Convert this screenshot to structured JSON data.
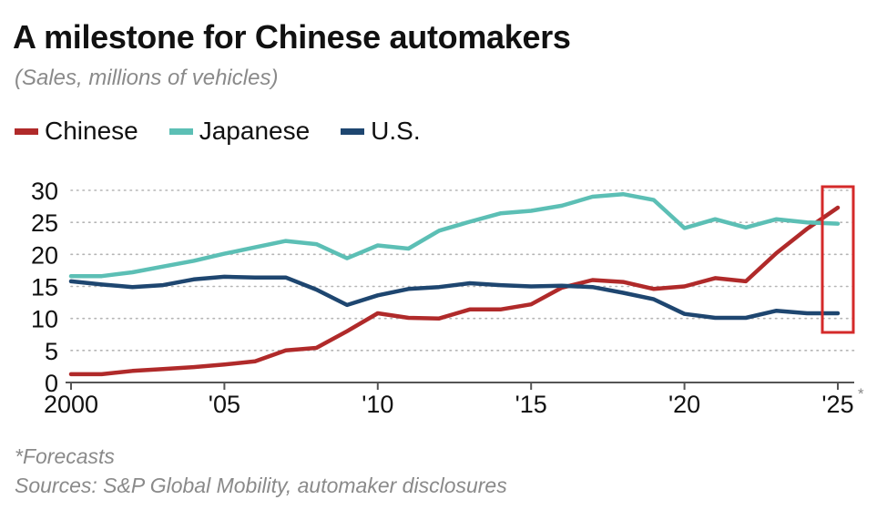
{
  "title": "A milestone for Chinese automakers",
  "subtitle": "(Sales, millions of vehicles)",
  "footnotes": {
    "forecast": "*Forecasts",
    "sources": "Sources: S&P Global Mobility, automaker disclosures"
  },
  "colors": {
    "chinese": "#b02a2a",
    "japanese": "#5cbfb5",
    "us": "#1e4670",
    "highlight": "#d42a2a",
    "grid": "#b5b5b5"
  },
  "chart_data": {
    "type": "line",
    "x": [
      2000,
      2001,
      2002,
      2003,
      2004,
      2005,
      2006,
      2007,
      2008,
      2009,
      2010,
      2011,
      2012,
      2013,
      2014,
      2015,
      2016,
      2017,
      2018,
      2019,
      2020,
      2021,
      2022,
      2023,
      2024,
      2025
    ],
    "x_tick_values": [
      2000,
      2005,
      2010,
      2015,
      2020,
      2025
    ],
    "x_tick_labels": [
      "2000",
      "'05",
      "'10",
      "'15",
      "'20",
      "'25"
    ],
    "x_tick_suffix_2025": "*",
    "y_ticks": [
      0,
      5,
      10,
      15,
      20,
      25,
      30
    ],
    "ylim": [
      0,
      30
    ],
    "xlim": [
      2000,
      2025
    ],
    "grid": "horizontal dotted",
    "legend_position": "top-left",
    "highlight_year": 2025,
    "series": [
      {
        "name": "Chinese",
        "color": "#b02a2a",
        "values": [
          1.3,
          1.3,
          1.8,
          2.1,
          2.4,
          2.8,
          3.3,
          5.0,
          5.4,
          8.0,
          10.8,
          10.1,
          10.0,
          11.4,
          11.4,
          12.2,
          14.8,
          16.0,
          15.7,
          14.6,
          15.0,
          16.3,
          15.8,
          20.2,
          24.0,
          27.3
        ]
      },
      {
        "name": "Japanese",
        "color": "#5cbfb5",
        "values": [
          16.6,
          16.6,
          17.2,
          18.1,
          19.0,
          20.1,
          21.1,
          22.1,
          21.6,
          19.4,
          21.4,
          20.9,
          23.7,
          25.1,
          26.4,
          26.8,
          27.6,
          29.0,
          29.4,
          28.5,
          24.1,
          25.5,
          24.2,
          25.5,
          25.0,
          24.8
        ]
      },
      {
        "name": "U.S.",
        "color": "#1e4670",
        "values": [
          15.8,
          15.3,
          14.9,
          15.2,
          16.1,
          16.5,
          16.4,
          16.4,
          14.5,
          12.1,
          13.6,
          14.6,
          14.9,
          15.5,
          15.2,
          15.0,
          15.1,
          14.9,
          14.0,
          13.0,
          10.7,
          10.1,
          10.1,
          11.2,
          10.8,
          10.8
        ]
      }
    ]
  }
}
